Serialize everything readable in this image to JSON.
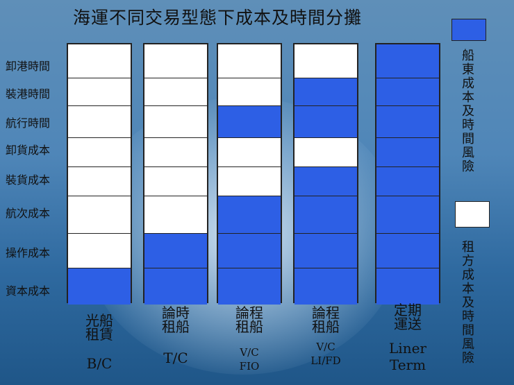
{
  "title": "海運不同交易型態下成本及時間分攤",
  "row_labels": [
    "卸港時間",
    "裝港時間",
    "航行時間",
    "卸貨成本",
    "裝貨成本",
    "航次成本",
    "操作成本",
    "資本成本"
  ],
  "columns": [
    {
      "name_line1": "光船",
      "name_line2": "租賃",
      "abbr_line1": "B/C",
      "abbr_line2": "",
      "cells": [
        "charterer",
        "charterer",
        "charterer",
        "charterer",
        "charterer",
        "charterer",
        "charterer",
        "owner"
      ]
    },
    {
      "name_line1": "論時",
      "name_line2": "租船",
      "abbr_line1": "T/C",
      "abbr_line2": "",
      "cells": [
        "charterer",
        "charterer",
        "charterer",
        "charterer",
        "charterer",
        "charterer",
        "owner",
        "owner"
      ]
    },
    {
      "name_line1": "論程",
      "name_line2": "租船",
      "abbr_line1": "V/C",
      "abbr_line2": "FIO",
      "cells": [
        "charterer",
        "charterer",
        "owner",
        "charterer",
        "charterer",
        "owner",
        "owner",
        "owner"
      ]
    },
    {
      "name_line1": "論程",
      "name_line2": "租船",
      "abbr_line1": "V/C",
      "abbr_line2": "LI/FD",
      "cells": [
        "charterer",
        "owner",
        "owner",
        "charterer",
        "owner",
        "owner",
        "owner",
        "owner"
      ]
    },
    {
      "name_line1": "定期",
      "name_line2": "運送",
      "abbr_line1": "Liner",
      "abbr_line2": "Term",
      "cells": [
        "owner",
        "owner",
        "owner",
        "owner",
        "owner",
        "owner",
        "owner",
        "owner"
      ]
    }
  ],
  "legend": {
    "owner": {
      "color": "#2d5fe5",
      "text": "船東成本及時間風險"
    },
    "charterer": {
      "color": "#ffffff",
      "text": "租方成本及時間風險"
    }
  }
}
